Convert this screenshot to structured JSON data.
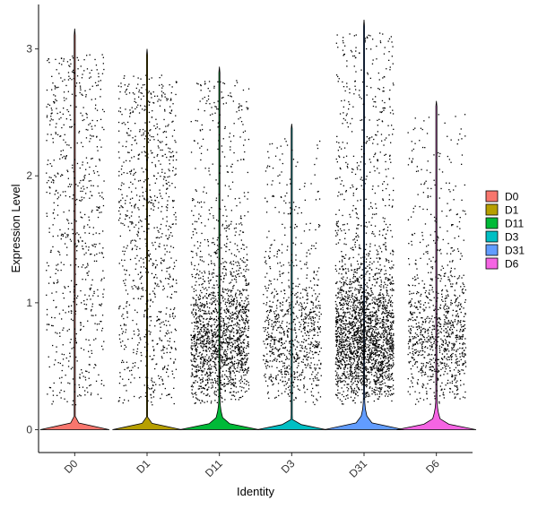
{
  "chart_data": {
    "type": "violin",
    "xlabel": "Identity",
    "ylabel": "Expression Level",
    "categories": [
      "D0",
      "D1",
      "D11",
      "D3",
      "D31",
      "D6"
    ],
    "ylim": [
      -0.18,
      3.35
    ],
    "yticks": [
      0,
      1,
      2,
      3
    ],
    "grid": false,
    "legend_position": "right",
    "series": [
      {
        "name": "D0",
        "color": "#F8766D",
        "max": 3.16,
        "zero_fraction": 0.99,
        "jitter_points": 700,
        "nonzero_median": 1.2
      },
      {
        "name": "D1",
        "color": "#B79F00",
        "max": 3.0,
        "zero_fraction": 0.99,
        "jitter_points": 900,
        "nonzero_median": 1.1
      },
      {
        "name": "D11",
        "color": "#00BA38",
        "max": 2.86,
        "zero_fraction": 0.9,
        "jitter_points": 1800,
        "nonzero_median": 0.65
      },
      {
        "name": "D3",
        "color": "#00BFC4",
        "max": 2.41,
        "zero_fraction": 0.99,
        "jitter_points": 900,
        "nonzero_median": 0.8
      },
      {
        "name": "D31",
        "color": "#619CFF",
        "max": 3.23,
        "zero_fraction": 0.9,
        "jitter_points": 2600,
        "nonzero_median": 0.75
      },
      {
        "name": "D6",
        "color": "#F564E3",
        "max": 2.59,
        "zero_fraction": 0.85,
        "jitter_points": 1000,
        "nonzero_median": 0.8
      }
    ]
  }
}
